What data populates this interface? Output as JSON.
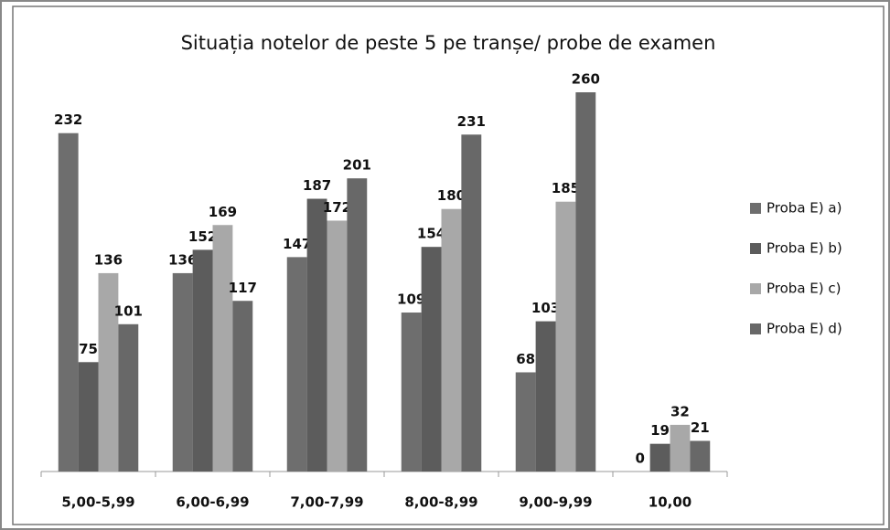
{
  "chart_data": {
    "type": "bar",
    "title": "Situația notelor de peste 5 pe tranșe/ probe de examen",
    "categories": [
      "5,00-5,99",
      "6,00-6,99",
      "7,00-7,99",
      "8,00-8,99",
      "9,00-9,99",
      "10,00"
    ],
    "series": [
      {
        "name": "Proba E) a)",
        "color": "#6e6e6e",
        "values": [
          232,
          136,
          147,
          109,
          68,
          0
        ]
      },
      {
        "name": "Proba E) b)",
        "color": "#5c5c5c",
        "values": [
          75,
          152,
          187,
          154,
          103,
          19
        ]
      },
      {
        "name": "Proba E) c)",
        "color": "#a8a8a8",
        "values": [
          136,
          169,
          172,
          180,
          185,
          32
        ]
      },
      {
        "name": "Proba E) d)",
        "color": "#686868",
        "values": [
          101,
          117,
          201,
          231,
          260,
          21
        ]
      }
    ],
    "legend": "right"
  }
}
